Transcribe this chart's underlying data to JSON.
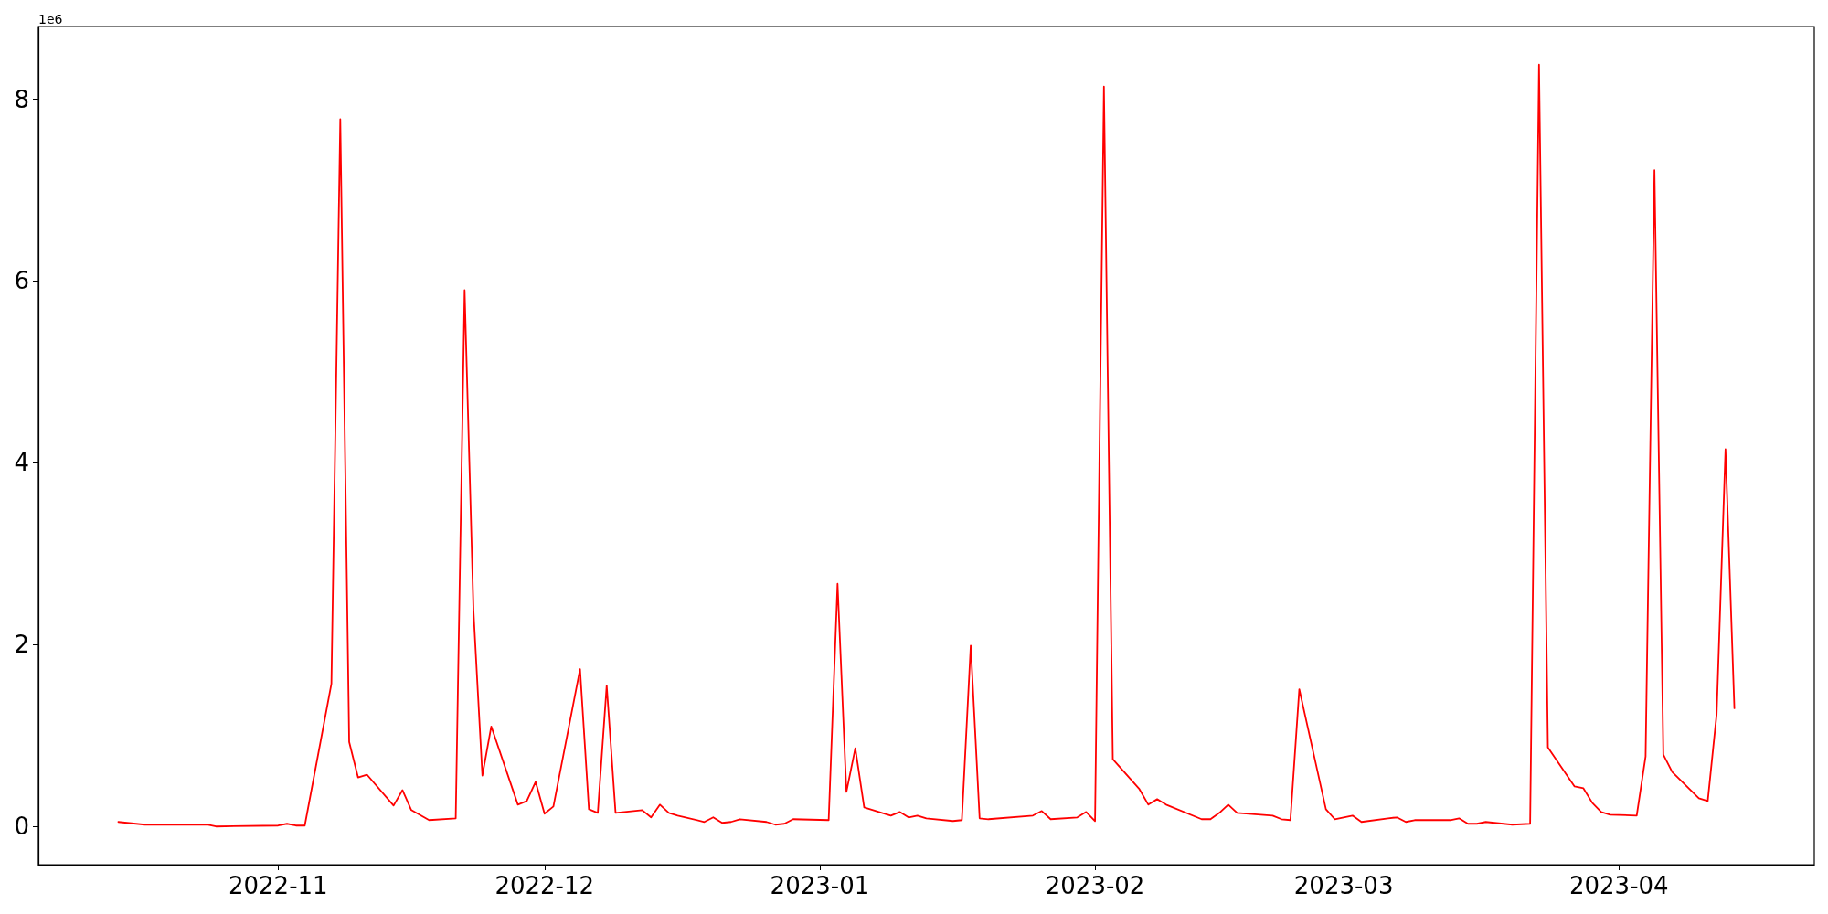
{
  "chart_data": {
    "type": "line",
    "x": [
      "2022-10-14",
      "2022-10-17",
      "2022-10-20",
      "2022-10-24",
      "2022-10-25",
      "2022-11-01",
      "2022-11-02",
      "2022-11-03",
      "2022-11-04",
      "2022-11-07",
      "2022-11-08",
      "2022-11-09",
      "2022-11-10",
      "2022-11-11",
      "2022-11-14",
      "2022-11-15",
      "2022-11-16",
      "2022-11-18",
      "2022-11-21",
      "2022-11-22",
      "2022-11-23",
      "2022-11-24",
      "2022-11-25",
      "2022-11-28",
      "2022-11-29",
      "2022-11-30",
      "2022-12-01",
      "2022-12-02",
      "2022-12-05",
      "2022-12-06",
      "2022-12-07",
      "2022-12-08",
      "2022-12-09",
      "2022-12-12",
      "2022-12-13",
      "2022-12-14",
      "2022-12-15",
      "2022-12-16",
      "2022-12-19",
      "2022-12-20",
      "2022-12-21",
      "2022-12-22",
      "2022-12-23",
      "2022-12-26",
      "2022-12-27",
      "2022-12-28",
      "2022-12-29",
      "2023-01-02",
      "2023-01-03",
      "2023-01-04",
      "2023-01-05",
      "2023-01-06",
      "2023-01-09",
      "2023-01-10",
      "2023-01-11",
      "2023-01-12",
      "2023-01-13",
      "2023-01-16",
      "2023-01-17",
      "2023-01-18",
      "2023-01-19",
      "2023-01-20",
      "2023-01-25",
      "2023-01-26",
      "2023-01-27",
      "2023-01-30",
      "2023-01-31",
      "2023-02-01",
      "2023-02-02",
      "2023-02-03",
      "2023-02-06",
      "2023-02-07",
      "2023-02-08",
      "2023-02-09",
      "2023-02-13",
      "2023-02-14",
      "2023-02-15",
      "2023-02-16",
      "2023-02-17",
      "2023-02-21",
      "2023-02-22",
      "2023-02-23",
      "2023-02-24",
      "2023-02-27",
      "2023-02-28",
      "2023-03-02",
      "2023-03-03",
      "2023-03-06",
      "2023-03-07",
      "2023-03-08",
      "2023-03-09",
      "2023-03-13",
      "2023-03-14",
      "2023-03-15",
      "2023-03-16",
      "2023-03-17",
      "2023-03-20",
      "2023-03-22",
      "2023-03-23",
      "2023-03-24",
      "2023-03-27",
      "2023-03-28",
      "2023-03-29",
      "2023-03-30",
      "2023-03-31",
      "2023-04-03",
      "2023-04-04",
      "2023-04-05",
      "2023-04-06",
      "2023-04-07",
      "2023-04-10",
      "2023-04-11",
      "2023-04-12",
      "2023-04-13",
      "2023-04-14"
    ],
    "series": [
      {
        "color": "#ff0000",
        "values": [
          0.05,
          0.02,
          0.02,
          0.02,
          0.0,
          0.01,
          0.03,
          0.01,
          0.01,
          1.57,
          7.78,
          0.93,
          0.54,
          0.57,
          0.23,
          0.4,
          0.18,
          0.07,
          0.09,
          5.9,
          2.37,
          0.56,
          1.1,
          0.24,
          0.28,
          0.49,
          0.14,
          0.22,
          1.73,
          0.19,
          0.15,
          1.55,
          0.15,
          0.18,
          0.1,
          0.24,
          0.15,
          0.12,
          0.05,
          0.1,
          0.04,
          0.05,
          0.08,
          0.05,
          0.02,
          0.03,
          0.08,
          0.07,
          2.67,
          0.38,
          0.86,
          0.21,
          0.12,
          0.16,
          0.1,
          0.12,
          0.09,
          0.06,
          0.07,
          1.99,
          0.09,
          0.08,
          0.12,
          0.17,
          0.08,
          0.1,
          0.16,
          0.06,
          8.14,
          0.74,
          0.41,
          0.24,
          0.3,
          0.24,
          0.08,
          0.08,
          0.15,
          0.24,
          0.15,
          0.12,
          0.08,
          0.07,
          1.51,
          0.19,
          0.08,
          0.12,
          0.05,
          0.09,
          0.1,
          0.05,
          0.07,
          0.07,
          0.09,
          0.03,
          0.03,
          0.05,
          0.02,
          0.03,
          8.38,
          0.87,
          0.44,
          0.42,
          0.26,
          0.16,
          0.13,
          0.12,
          0.77,
          7.22,
          0.79,
          0.6,
          0.31,
          0.28,
          1.23,
          4.15,
          1.3
        ]
      }
    ],
    "xlim": [
      "2022-10-05",
      "2023-04-23"
    ],
    "xticks": [
      {
        "value": "2022-11",
        "label": "2022-11"
      },
      {
        "value": "2022-12",
        "label": "2022-12"
      },
      {
        "value": "2023-01",
        "label": "2023-01"
      },
      {
        "value": "2023-02",
        "label": "2023-02"
      },
      {
        "value": "2023-03",
        "label": "2023-03"
      },
      {
        "value": "2023-04",
        "label": "2023-04"
      }
    ],
    "ylim": [
      -0.42,
      8.8
    ],
    "yticks": [
      0,
      2,
      4,
      6,
      8
    ],
    "annotations": [
      "1e6"
    ],
    "grid": false,
    "marker": "none",
    "line_style": "solid"
  }
}
